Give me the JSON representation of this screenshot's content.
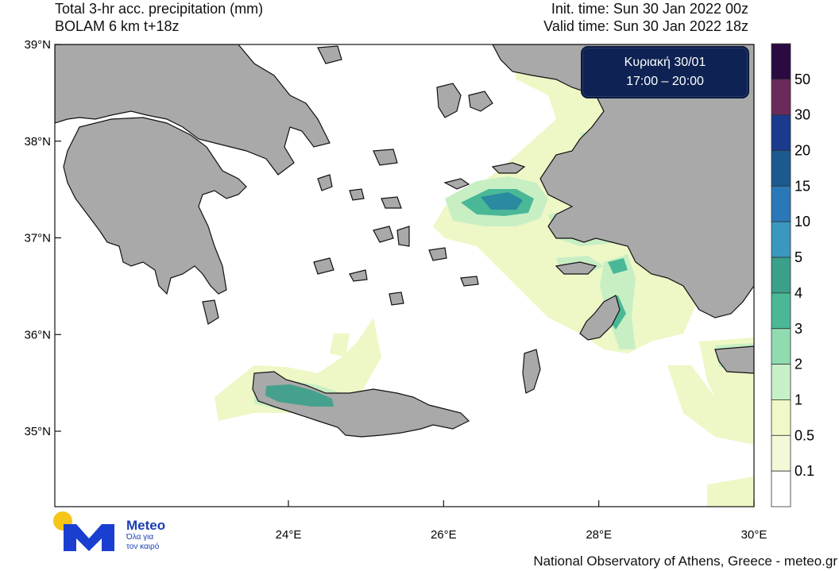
{
  "header": {
    "title_line1": "Total 3-hr acc. precipitation (mm)",
    "title_line2": "BOLAM 6 km t+18z",
    "init_time": "Init. time: Sun 30 Jan 2022 00z",
    "valid_time": "Valid time: Sun 30 Jan 2022 18z"
  },
  "badge": {
    "line1": "Κυριακή 30/01",
    "line2": "17:00 – 20:00"
  },
  "axes": {
    "lat_labels": [
      "39°N",
      "38°N",
      "37°N",
      "36°N",
      "35°N"
    ],
    "lat_values": [
      39,
      38,
      37,
      36,
      35
    ],
    "lon_labels": [
      "24°E",
      "26°E",
      "28°E",
      "30°E"
    ],
    "lon_values": [
      24,
      26,
      28,
      30
    ]
  },
  "legend": {
    "labels": [
      "50",
      "30",
      "20",
      "15",
      "10",
      "5",
      "4",
      "3",
      "2",
      "1",
      "0.5",
      "0.1"
    ],
    "colors": [
      "#2a0a40",
      "#6a2a5a",
      "#1a3a8e",
      "#1a5a90",
      "#2a78b8",
      "#3a98c0",
      "#3aa08a",
      "#4ab896",
      "#90dcb0",
      "#c8f0c8",
      "#f0f8c8",
      "#f4f8d8",
      "#ffffff"
    ]
  },
  "logo": {
    "name": "Meteo",
    "tagline_line1": "Όλα για",
    "tagline_line2": "τον καιρό",
    "colors": {
      "blue": "#1a3fd0",
      "sun": "#f5c518"
    }
  },
  "credit": "National Observatory of Athens, Greece - meteo.gr"
}
